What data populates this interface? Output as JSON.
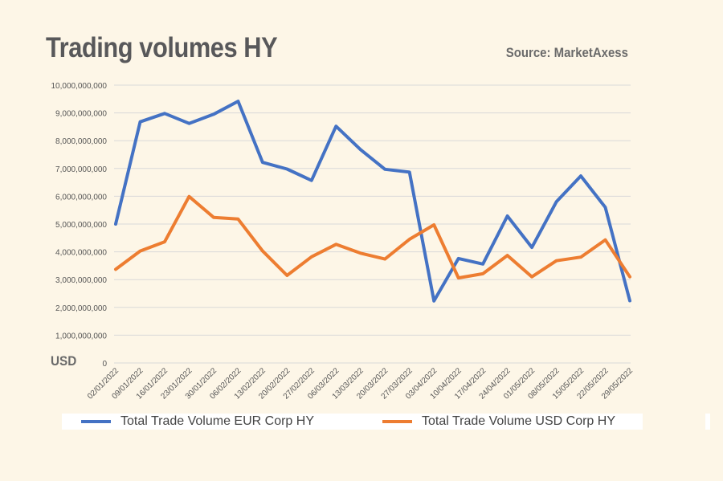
{
  "header": {
    "title": "Trading volumes HY",
    "source": "Source: MarketAxess",
    "unit": "USD"
  },
  "colors": {
    "background": "#fdf6e7",
    "series_eur": "#4472c4",
    "series_usd": "#ed7d31",
    "grid": "#d9d9d9"
  },
  "chart_data": {
    "type": "line",
    "title": "Trading volumes HY",
    "ylabel": "USD",
    "ylim": [
      0,
      10000000000
    ],
    "yticks": [
      0,
      1000000000,
      2000000000,
      3000000000,
      4000000000,
      5000000000,
      6000000000,
      7000000000,
      8000000000,
      9000000000,
      10000000000
    ],
    "ytick_labels": [
      "0",
      "1,000,000,000",
      "2,000,000,000",
      "3,000,000,000",
      "4,000,000,000",
      "5,000,000,000",
      "6,000,000,000",
      "7,000,000,000",
      "8,000,000,000",
      "9,000,000,000",
      "10,000,000,000"
    ],
    "grid": true,
    "legend": "bottom",
    "categories": [
      "02/01/2022",
      "09/01/2022",
      "16/01/2022",
      "23/01/2022",
      "30/01/2022",
      "06/02/2022",
      "13/02/2022",
      "20/02/2022",
      "27/02/2022",
      "06/03/2022",
      "13/03/2022",
      "20/03/2022",
      "27/03/2022",
      "03/04/2022",
      "10/04/2022",
      "17/04/2022",
      "24/04/2022",
      "01/05/2022",
      "08/05/2022",
      "15/05/2022",
      "22/05/2022",
      "29/05/2022"
    ],
    "series": [
      {
        "name": "Total Trade Volume EUR Corp HY",
        "color": "#4472c4",
        "values": [
          5000000000,
          8680000000,
          8980000000,
          8620000000,
          8950000000,
          9420000000,
          7220000000,
          6980000000,
          6570000000,
          8520000000,
          7680000000,
          6970000000,
          6870000000,
          2230000000,
          3760000000,
          3560000000,
          5290000000,
          4160000000,
          5800000000,
          6730000000,
          5600000000,
          2240000000
        ]
      },
      {
        "name": "Total Trade Volume USD Corp HY",
        "color": "#ed7d31",
        "values": [
          3370000000,
          4030000000,
          4360000000,
          5990000000,
          5240000000,
          5180000000,
          4030000000,
          3150000000,
          3820000000,
          4270000000,
          3950000000,
          3740000000,
          4450000000,
          4970000000,
          3060000000,
          3210000000,
          3870000000,
          3100000000,
          3680000000,
          3810000000,
          4430000000,
          3100000000
        ]
      }
    ]
  },
  "legend": {
    "eur_label": "Total Trade Volume EUR Corp HY",
    "usd_label": "Total Trade Volume USD Corp HY"
  }
}
